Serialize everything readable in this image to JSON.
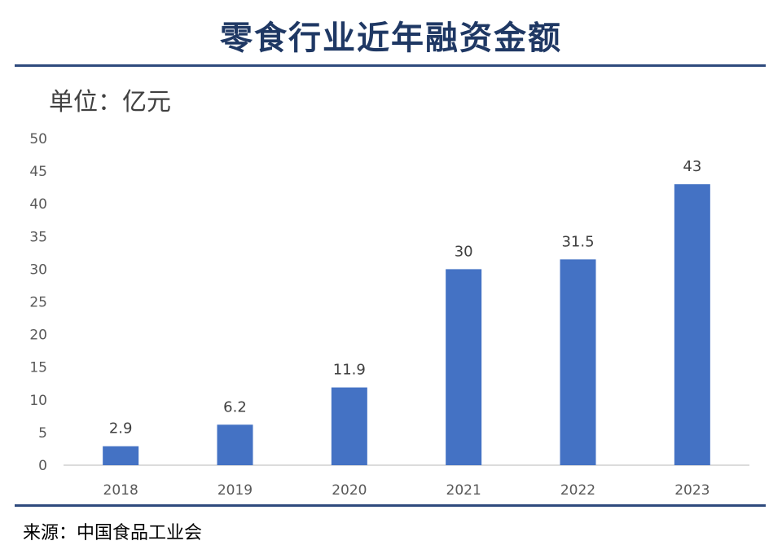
{
  "title": "零食行业近年融资金额",
  "unit_label": "单位：亿元",
  "source": "来源：中国食品工业会",
  "chart_data": {
    "type": "bar",
    "title": "零食行业近年融资金额",
    "categories": [
      "2018",
      "2019",
      "2020",
      "2021",
      "2022",
      "2023"
    ],
    "values": [
      2.9,
      6.2,
      11.9,
      30,
      31.5,
      43
    ],
    "data_labels": [
      "2.9",
      "6.2",
      "11.9",
      "30",
      "31.5",
      "43"
    ],
    "y_ticks": [
      "0",
      "5",
      "10",
      "15",
      "20",
      "25",
      "30",
      "35",
      "40",
      "45",
      "50"
    ],
    "ylim": [
      0,
      50
    ],
    "bar_color": "#4472c4",
    "grid": false,
    "legend": "none"
  }
}
